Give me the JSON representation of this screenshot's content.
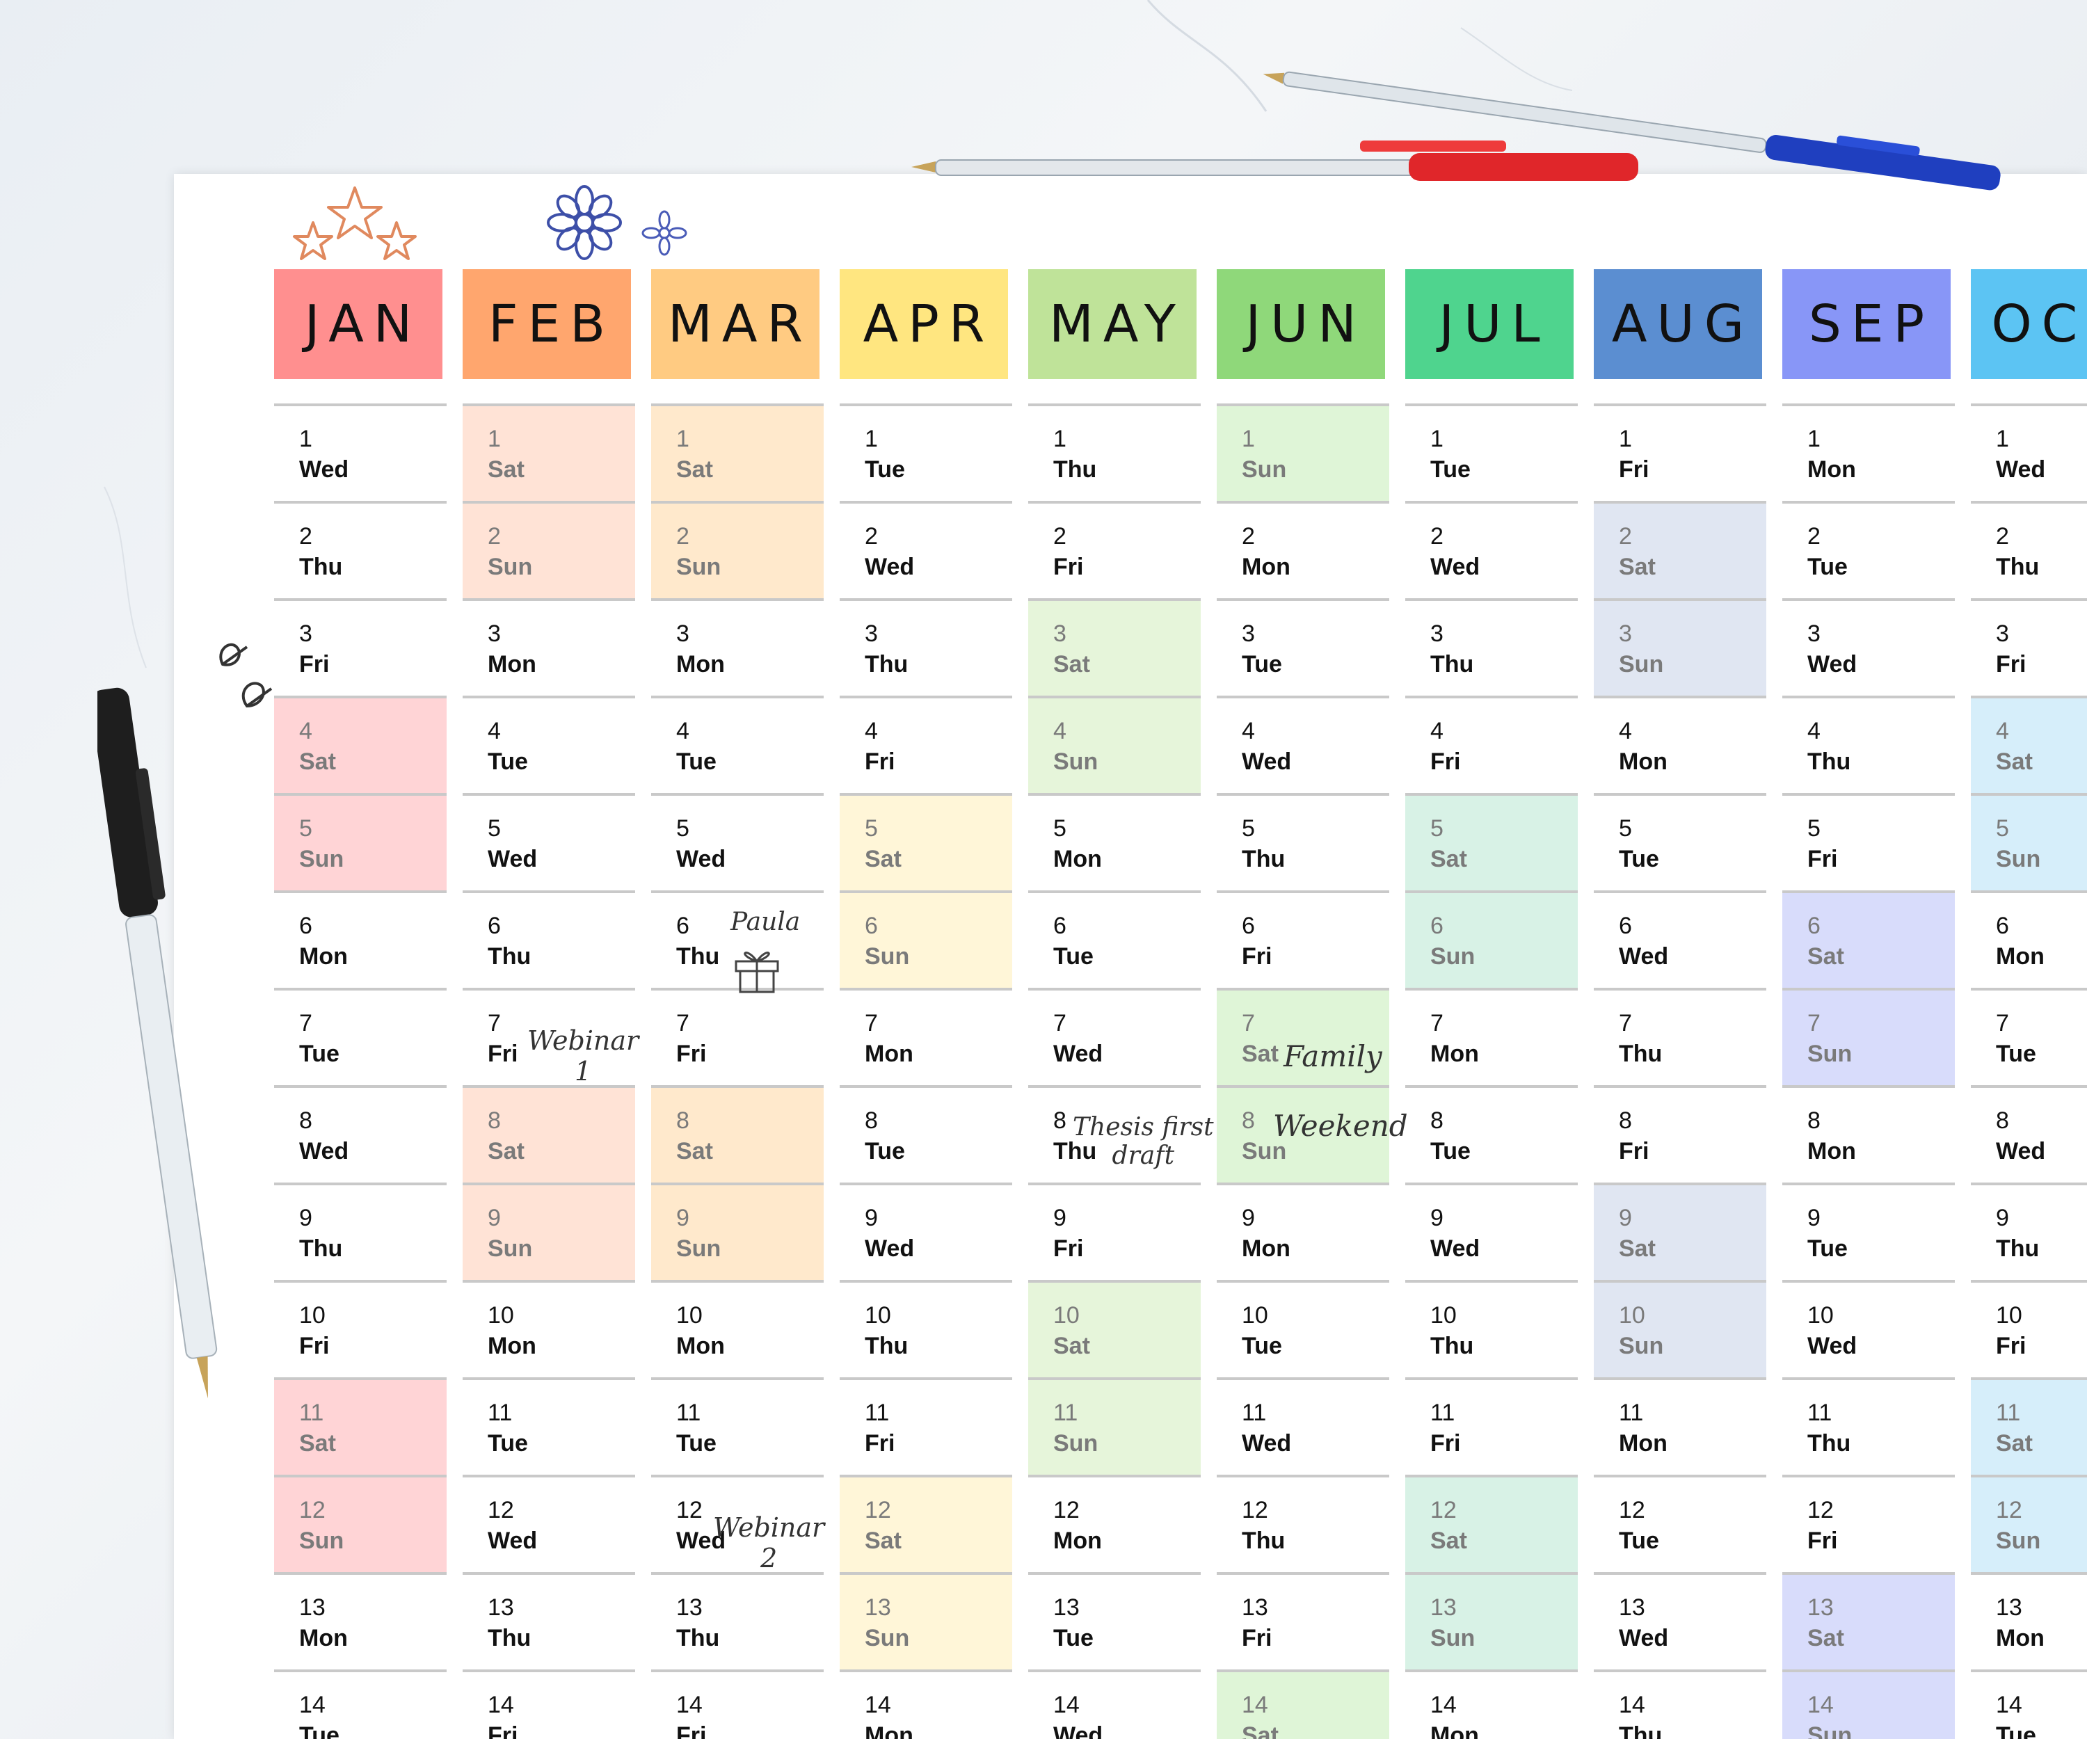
{
  "months": [
    {
      "label": "JAN",
      "header_color": "#ff8f8f",
      "weekend_color": "#ffd4d6",
      "days": [
        [
          "1",
          "Wed"
        ],
        [
          "2",
          "Thu"
        ],
        [
          "3",
          "Fri"
        ],
        [
          "4",
          "Sat"
        ],
        [
          "5",
          "Sun"
        ],
        [
          "6",
          "Mon"
        ],
        [
          "7",
          "Tue"
        ],
        [
          "8",
          "Wed"
        ],
        [
          "9",
          "Thu"
        ],
        [
          "10",
          "Fri"
        ],
        [
          "11",
          "Sat"
        ],
        [
          "12",
          "Sun"
        ],
        [
          "13",
          "Mon"
        ],
        [
          "14",
          "Tue"
        ]
      ]
    },
    {
      "label": "FEB",
      "header_color": "#ffa66e",
      "weekend_color": "#ffe3d6",
      "days": [
        [
          "1",
          "Sat"
        ],
        [
          "2",
          "Sun"
        ],
        [
          "3",
          "Mon"
        ],
        [
          "4",
          "Tue"
        ],
        [
          "5",
          "Wed"
        ],
        [
          "6",
          "Thu"
        ],
        [
          "7",
          "Fri"
        ],
        [
          "8",
          "Sat"
        ],
        [
          "9",
          "Sun"
        ],
        [
          "10",
          "Mon"
        ],
        [
          "11",
          "Tue"
        ],
        [
          "12",
          "Wed"
        ],
        [
          "13",
          "Thu"
        ],
        [
          "14",
          "Fri"
        ]
      ]
    },
    {
      "label": "MAR",
      "header_color": "#ffcb82",
      "weekend_color": "#ffe9cc",
      "days": [
        [
          "1",
          "Sat"
        ],
        [
          "2",
          "Sun"
        ],
        [
          "3",
          "Mon"
        ],
        [
          "4",
          "Tue"
        ],
        [
          "5",
          "Wed"
        ],
        [
          "6",
          "Thu"
        ],
        [
          "7",
          "Fri"
        ],
        [
          "8",
          "Sat"
        ],
        [
          "9",
          "Sun"
        ],
        [
          "10",
          "Mon"
        ],
        [
          "11",
          "Tue"
        ],
        [
          "12",
          "Wed"
        ],
        [
          "13",
          "Thu"
        ],
        [
          "14",
          "Fri"
        ]
      ]
    },
    {
      "label": "APR",
      "header_color": "#ffe680",
      "weekend_color": "#fff6d8",
      "days": [
        [
          "1",
          "Tue"
        ],
        [
          "2",
          "Wed"
        ],
        [
          "3",
          "Thu"
        ],
        [
          "4",
          "Fri"
        ],
        [
          "5",
          "Sat"
        ],
        [
          "6",
          "Sun"
        ],
        [
          "7",
          "Mon"
        ],
        [
          "8",
          "Tue"
        ],
        [
          "9",
          "Wed"
        ],
        [
          "10",
          "Thu"
        ],
        [
          "11",
          "Fri"
        ],
        [
          "12",
          "Sat"
        ],
        [
          "13",
          "Sun"
        ],
        [
          "14",
          "Mon"
        ]
      ]
    },
    {
      "label": "MAY",
      "header_color": "#bfe399",
      "weekend_color": "#e6f5da",
      "days": [
        [
          "1",
          "Thu"
        ],
        [
          "2",
          "Fri"
        ],
        [
          "3",
          "Sat"
        ],
        [
          "4",
          "Sun"
        ],
        [
          "5",
          "Mon"
        ],
        [
          "6",
          "Tue"
        ],
        [
          "7",
          "Wed"
        ],
        [
          "8",
          "Thu"
        ],
        [
          "9",
          "Fri"
        ],
        [
          "10",
          "Sat"
        ],
        [
          "11",
          "Sun"
        ],
        [
          "12",
          "Mon"
        ],
        [
          "13",
          "Tue"
        ],
        [
          "14",
          "Wed"
        ]
      ]
    },
    {
      "label": "JUN",
      "header_color": "#8fd87a",
      "weekend_color": "#dff5d7",
      "days": [
        [
          "1",
          "Sun"
        ],
        [
          "2",
          "Mon"
        ],
        [
          "3",
          "Tue"
        ],
        [
          "4",
          "Wed"
        ],
        [
          "5",
          "Thu"
        ],
        [
          "6",
          "Fri"
        ],
        [
          "7",
          "Sat"
        ],
        [
          "8",
          "Sun"
        ],
        [
          "9",
          "Mon"
        ],
        [
          "10",
          "Tue"
        ],
        [
          "11",
          "Wed"
        ],
        [
          "12",
          "Thu"
        ],
        [
          "13",
          "Fri"
        ],
        [
          "14",
          "Sat"
        ]
      ]
    },
    {
      "label": "JUL",
      "header_color": "#4fd48e",
      "weekend_color": "#d8f2e6",
      "days": [
        [
          "1",
          "Tue"
        ],
        [
          "2",
          "Wed"
        ],
        [
          "3",
          "Thu"
        ],
        [
          "4",
          "Fri"
        ],
        [
          "5",
          "Sat"
        ],
        [
          "6",
          "Sun"
        ],
        [
          "7",
          "Mon"
        ],
        [
          "8",
          "Tue"
        ],
        [
          "9",
          "Wed"
        ],
        [
          "10",
          "Thu"
        ],
        [
          "11",
          "Fri"
        ],
        [
          "12",
          "Sat"
        ],
        [
          "13",
          "Sun"
        ],
        [
          "14",
          "Mon"
        ]
      ]
    },
    {
      "label": "AUG",
      "header_color": "#5b8ed1",
      "weekend_color": "#e0e6f2",
      "days": [
        [
          "1",
          "Fri"
        ],
        [
          "2",
          "Sat"
        ],
        [
          "3",
          "Sun"
        ],
        [
          "4",
          "Mon"
        ],
        [
          "5",
          "Tue"
        ],
        [
          "6",
          "Wed"
        ],
        [
          "7",
          "Thu"
        ],
        [
          "8",
          "Fri"
        ],
        [
          "9",
          "Sat"
        ],
        [
          "10",
          "Sun"
        ],
        [
          "11",
          "Mon"
        ],
        [
          "12",
          "Tue"
        ],
        [
          "13",
          "Wed"
        ],
        [
          "14",
          "Thu"
        ]
      ]
    },
    {
      "label": "SEP",
      "header_color": "#8896f7",
      "weekend_color": "#d8dcfb",
      "days": [
        [
          "1",
          "Mon"
        ],
        [
          "2",
          "Tue"
        ],
        [
          "3",
          "Wed"
        ],
        [
          "4",
          "Thu"
        ],
        [
          "5",
          "Fri"
        ],
        [
          "6",
          "Sat"
        ],
        [
          "7",
          "Sun"
        ],
        [
          "8",
          "Mon"
        ],
        [
          "9",
          "Tue"
        ],
        [
          "10",
          "Wed"
        ],
        [
          "11",
          "Thu"
        ],
        [
          "12",
          "Fri"
        ],
        [
          "13",
          "Sat"
        ],
        [
          "14",
          "Sun"
        ]
      ]
    },
    {
      "label": "OCT",
      "header_color": "#5cc4f3",
      "weekend_color": "#d6eefa",
      "days": [
        [
          "1",
          "Wed"
        ],
        [
          "2",
          "Thu"
        ],
        [
          "3",
          "Fri"
        ],
        [
          "4",
          "Sat"
        ],
        [
          "5",
          "Sun"
        ],
        [
          "6",
          "Mon"
        ],
        [
          "7",
          "Tue"
        ],
        [
          "8",
          "Wed"
        ],
        [
          "9",
          "Thu"
        ],
        [
          "10",
          "Fri"
        ],
        [
          "11",
          "Sat"
        ],
        [
          "12",
          "Sun"
        ],
        [
          "13",
          "Mon"
        ],
        [
          "14",
          "Tue"
        ]
      ]
    }
  ],
  "notes": {
    "feb7": "Webinar\n1",
    "mar6": "Paula",
    "mar12": "Webinar\n2",
    "may8": "Thesis first\ndraft",
    "jun7": "Family",
    "jun8": "Weekend"
  },
  "decorations": [
    "star-doodles-icon",
    "flower-doodles-icon",
    "leaf-doodle-icon",
    "gift-doodle-icon",
    "black-pen",
    "silver-pen-red-cap",
    "silver-pen-blue-cap"
  ]
}
